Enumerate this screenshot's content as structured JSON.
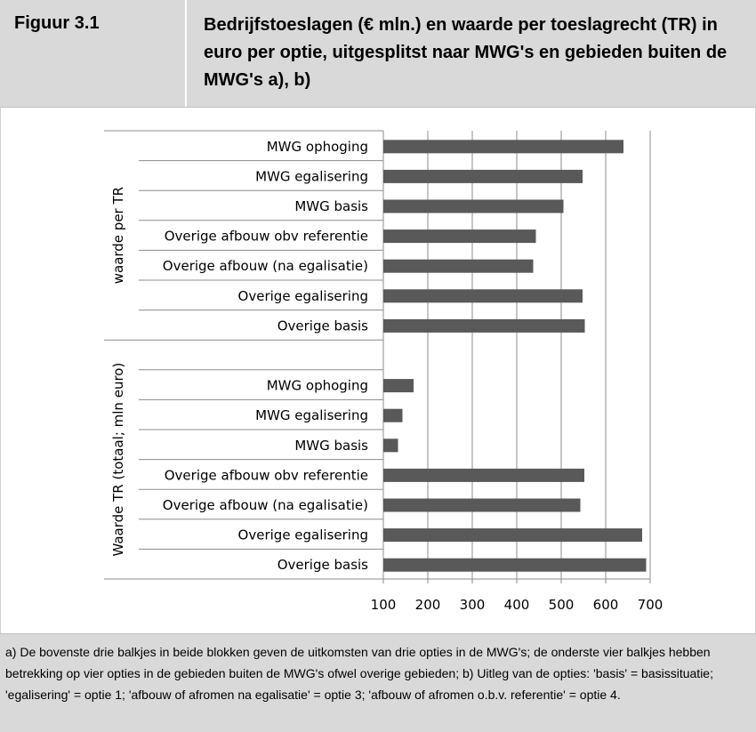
{
  "figure": {
    "label": "Figuur 3.1",
    "title": "Bedrijfstoeslagen (€ mln.) en waarde per toeslagrecht (TR) in euro per optie, uitgesplitst naar MWG's en gebieden buiten de MWG's a), b)"
  },
  "footnote": "a) De bovenste drie balkjes in beide blokken geven de uitkomsten van drie opties in de MWG's; de onderste vier balkjes hebben betrekking op vier opties in de gebieden buiten de MWG's ofwel overige gebieden; b) Uitleg van de opties: 'basis' = basissituatie; 'egalisering' = optie 1; 'afbouw of afromen na egalisatie' = optie 3; 'afbouw of afromen o.b.v. referentie' = optie 4.",
  "chart_data": {
    "type": "bar",
    "orientation": "horizontal",
    "bar_color": "#595959",
    "xlim": [
      100,
      700
    ],
    "xticks": [
      "100",
      "200",
      "300",
      "400",
      "500",
      "600",
      "700"
    ],
    "grid": "vertical",
    "groups": [
      {
        "label": "waarde per TR",
        "categories": [
          "MWG ophoging",
          "MWG egalisering",
          "MWG basis",
          "Overige afbouw obv referentie",
          "Overige afbouw (na egalisatie)",
          "Overige egalisering",
          "Overige basis"
        ],
        "values": [
          640,
          548,
          505,
          443,
          437,
          548,
          553
        ]
      },
      {
        "label": "Waarde TR (totaal; mln euro)",
        "categories": [
          "",
          "MWG ophoging",
          "MWG egalisering",
          "MWG basis",
          "Overige afbouw obv referentie",
          "Overige afbouw (na egalisatie)",
          "Overige egalisering",
          "Overige basis"
        ],
        "values": [
          null,
          168,
          143,
          133,
          552,
          543,
          682,
          691
        ]
      }
    ]
  }
}
